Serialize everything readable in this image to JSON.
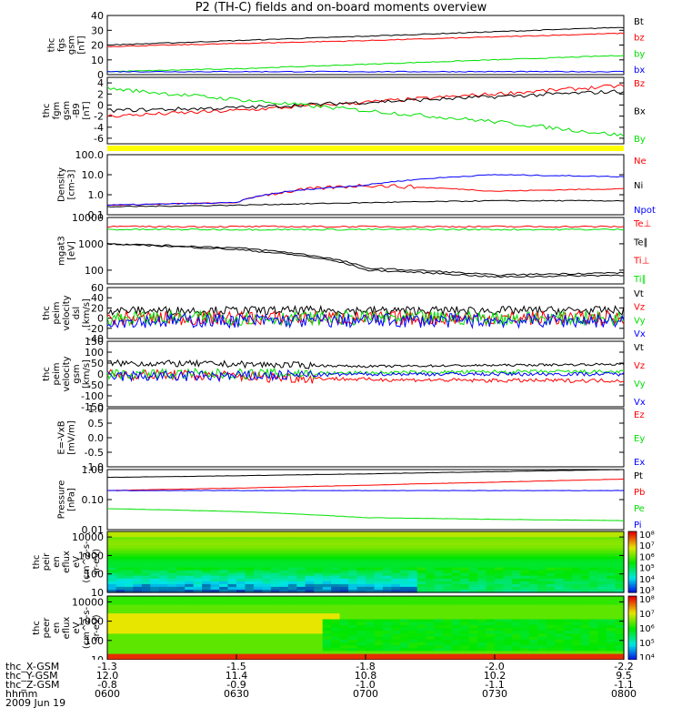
{
  "title": "P2 (TH-C) fields and on-board moments overview",
  "colors": {
    "black": "#000000",
    "red": "#ff0000",
    "green": "#00e000",
    "blue": "#0000ff",
    "yellow": "#ffff00"
  },
  "panels": [
    {
      "id": "fgs",
      "ylabel": [
        "thc",
        "fgs",
        "gsm",
        "[nT]"
      ],
      "ticks": [
        "0",
        "10",
        "20",
        "30",
        "40"
      ],
      "legend": [
        {
          "t": "Bt",
          "c": "black"
        },
        {
          "t": "bz",
          "c": "red"
        },
        {
          "t": "by",
          "c": "green"
        },
        {
          "t": "bx",
          "c": "blue"
        }
      ]
    },
    {
      "id": "fgm",
      "ylabel": [
        "thc",
        "fgm",
        "gsm",
        "-B9",
        "[nT]"
      ],
      "ticks": [
        "-6",
        "-4",
        "-2",
        "0",
        "2",
        "4"
      ],
      "legend": [
        {
          "t": "Bz",
          "c": "red"
        },
        {
          "t": "Bx",
          "c": "black"
        },
        {
          "t": "By",
          "c": "green"
        }
      ]
    },
    {
      "id": "density",
      "ylabel": [
        "Density",
        "[cm-3]"
      ],
      "ticks": [
        "0.1",
        "1.0",
        "10.0",
        "100.0"
      ],
      "legend": [
        {
          "t": "Ne",
          "c": "red"
        },
        {
          "t": "Ni",
          "c": "black"
        },
        {
          "t": "Npot",
          "c": "blue"
        }
      ]
    },
    {
      "id": "temp",
      "ylabel": [
        "mgat3",
        "[eV]"
      ],
      "ticks": [
        "100",
        "1000",
        "10000"
      ],
      "legend": [
        {
          "t": "Te⊥",
          "c": "red"
        },
        {
          "t": "Te∥",
          "c": "black"
        },
        {
          "t": "Ti⊥",
          "c": "red"
        },
        {
          "t": "Ti∥",
          "c": "green"
        }
      ]
    },
    {
      "id": "peim",
      "ylabel": [
        "thc",
        "peim",
        "velocity",
        "dsl",
        "[km/s]"
      ],
      "ticks": [
        "-40",
        "-20",
        "0",
        "20",
        "40",
        "60"
      ],
      "legend": [
        {
          "t": "Vt",
          "c": "black"
        },
        {
          "t": "Vz",
          "c": "red"
        },
        {
          "t": "Vy",
          "c": "green"
        },
        {
          "t": "Vx",
          "c": "blue"
        }
      ]
    },
    {
      "id": "peem",
      "ylabel": [
        "thc",
        "peim",
        "velocity",
        "gsm",
        "[km/s]"
      ],
      "ticks": [
        "-150",
        "-100",
        "-50",
        "0",
        "50",
        "100",
        "150"
      ],
      "legend": [
        {
          "t": "Vt",
          "c": "black"
        },
        {
          "t": "Vz",
          "c": "red"
        },
        {
          "t": "Vy",
          "c": "green"
        },
        {
          "t": "Vx",
          "c": "blue"
        }
      ]
    },
    {
      "id": "efield",
      "ylabel": [
        "E=-VxB",
        "[mV/m]"
      ],
      "ticks": [
        "-1.0",
        "-0.5",
        "0.0",
        "0.5",
        "1.0"
      ],
      "legend": [
        {
          "t": "Ez",
          "c": "red"
        },
        {
          "t": "Ey",
          "c": "green"
        },
        {
          "t": "Ex",
          "c": "blue"
        }
      ]
    },
    {
      "id": "pressure",
      "ylabel": [
        "Pressure",
        "[nPa]"
      ],
      "ticks": [
        "0.01",
        "0.10",
        "1.00"
      ],
      "legend": [
        {
          "t": "Pt",
          "c": "black"
        },
        {
          "t": "Pb",
          "c": "red"
        },
        {
          "t": "Pe",
          "c": "green"
        },
        {
          "t": "Pi",
          "c": "blue"
        }
      ]
    },
    {
      "id": "peir",
      "ylabel": [
        "thc",
        "peir",
        "en",
        "eflux",
        "eV",
        "(cm^2-s-",
        "sr-eV)"
      ],
      "ticks": [
        "10",
        "100",
        "1000",
        "10000"
      ],
      "colorbar": [
        "10³",
        "10⁴",
        "10⁵",
        "10⁶",
        "10⁷",
        "10⁸"
      ]
    },
    {
      "id": "peer",
      "ylabel": [
        "thc",
        "peer",
        "en",
        "eflux",
        "eV",
        "(cm^2-s-",
        "sr-eV)"
      ],
      "ticks": [
        "10",
        "100",
        "1000",
        "10000"
      ],
      "colorbar": [
        "10⁴",
        "10⁵",
        "10⁶",
        "10⁷",
        "10⁸"
      ]
    }
  ],
  "orbit": {
    "labels": [
      "thc_X-GSM",
      "thc_Y-GSM",
      "thc_Z-GSM",
      "hhmm",
      "2009 Jun 19"
    ],
    "columns": [
      {
        "x": "-1.3",
        "y": "12.0",
        "z": "-0.8",
        "t": "0600"
      },
      {
        "x": "-1.5",
        "y": "11.4",
        "z": "-0.9",
        "t": "0630"
      },
      {
        "x": "-1.8",
        "y": "10.8",
        "z": "-1.0",
        "t": "0700"
      },
      {
        "x": "-2.0",
        "y": "10.2",
        "z": "-1.1",
        "t": "0730"
      },
      {
        "x": "-2.2",
        "y": "9.5",
        "z": "-1.1",
        "t": "0800"
      }
    ]
  },
  "chart_data": [
    {
      "type": "line",
      "panel": "fgs",
      "ylim": [
        0,
        40
      ],
      "x": [
        "0600",
        "0630",
        "0700",
        "0730",
        "0800"
      ],
      "series": [
        {
          "name": "Bt",
          "values": [
            20,
            23,
            26,
            29,
            32
          ]
        },
        {
          "name": "bz",
          "values": [
            19,
            21,
            23,
            25.5,
            28
          ]
        },
        {
          "name": "by",
          "values": [
            2,
            4,
            7,
            10,
            13
          ]
        },
        {
          "name": "bx",
          "values": [
            2,
            2,
            2,
            2,
            2
          ]
        }
      ]
    },
    {
      "type": "line",
      "panel": "fgm",
      "ylim": [
        -7,
        5
      ],
      "x": [
        "0600",
        "0630",
        "0700",
        "0730",
        "0800"
      ],
      "series": [
        {
          "name": "Bz",
          "values": [
            -2,
            -1,
            0.5,
            2,
            3.5
          ]
        },
        {
          "name": "Bx",
          "values": [
            -1,
            -0.5,
            0.5,
            1.5,
            2.5
          ]
        },
        {
          "name": "By",
          "values": [
            3,
            1,
            -1,
            -3,
            -5.5
          ]
        }
      ]
    },
    {
      "type": "line",
      "panel": "density",
      "ylim": [
        0.1,
        100
      ],
      "log": true,
      "x": [
        "0600",
        "0630",
        "0700",
        "0730",
        "0800"
      ],
      "series": [
        {
          "name": "Ne",
          "values": [
            0.3,
            0.4,
            3,
            1.5,
            2
          ]
        },
        {
          "name": "Ni",
          "values": [
            0.25,
            0.3,
            0.4,
            0.5,
            0.5
          ]
        },
        {
          "name": "Npot",
          "values": [
            0.3,
            0.4,
            3,
            10,
            8
          ]
        }
      ]
    },
    {
      "type": "line",
      "panel": "temp",
      "ylim": [
        30,
        10000
      ],
      "log": true,
      "x": [
        "0600",
        "0630",
        "0700",
        "0730",
        "0800"
      ],
      "series": [
        {
          "name": "Te⊥",
          "values": [
            1000,
            700,
            120,
            65,
            80
          ]
        },
        {
          "name": "Te∥",
          "values": [
            1000,
            600,
            100,
            55,
            65
          ]
        },
        {
          "name": "Ti⊥",
          "values": [
            4500,
            4500,
            4500,
            4500,
            4500
          ]
        },
        {
          "name": "Ti∥",
          "values": [
            3500,
            3500,
            3500,
            3500,
            3500
          ]
        }
      ]
    },
    {
      "type": "line",
      "panel": "peim",
      "ylim": [
        -40,
        60
      ],
      "x": [
        "0600",
        "0630",
        "0700",
        "0730",
        "0800"
      ],
      "series": [
        {
          "name": "Vt",
          "values": [
            15,
            15,
            15,
            15,
            15
          ]
        },
        {
          "name": "Vz",
          "values": [
            0,
            0,
            0,
            0,
            0
          ]
        },
        {
          "name": "Vy",
          "values": [
            0,
            0,
            0,
            0,
            0
          ]
        },
        {
          "name": "Vx",
          "values": [
            -5,
            -5,
            -5,
            -5,
            -5
          ]
        }
      ]
    },
    {
      "type": "line",
      "panel": "peem",
      "ylim": [
        -150,
        150
      ],
      "x": [
        "0600",
        "0630",
        "0700",
        "0730",
        "0800"
      ],
      "series": [
        {
          "name": "Vt",
          "values": [
            50,
            45,
            35,
            40,
            45
          ]
        },
        {
          "name": "Vz",
          "values": [
            0,
            -10,
            -25,
            -30,
            -30
          ]
        },
        {
          "name": "Vy",
          "values": [
            0,
            0,
            5,
            10,
            10
          ]
        },
        {
          "name": "Vx",
          "values": [
            -10,
            -10,
            0,
            0,
            0
          ]
        }
      ]
    },
    {
      "type": "line",
      "panel": "pressure",
      "ylim": [
        0.01,
        1
      ],
      "log": true,
      "x": [
        "0600",
        "0630",
        "0700",
        "0730",
        "0800"
      ],
      "series": [
        {
          "name": "Pt",
          "values": [
            0.55,
            0.62,
            0.72,
            0.85,
            1.0
          ]
        },
        {
          "name": "Pb",
          "values": [
            0.2,
            0.24,
            0.3,
            0.38,
            0.48
          ]
        },
        {
          "name": "Pe",
          "values": [
            0.2,
            0.2,
            0.2,
            0.2,
            0.2
          ]
        },
        {
          "name": "Pi",
          "values": [
            0.05,
            0.04,
            0.025,
            0.022,
            0.02
          ]
        }
      ]
    },
    {
      "type": "heatmap",
      "panel": "peir",
      "ylabel": "eV",
      "ylim": [
        10,
        20000
      ]
    },
    {
      "type": "heatmap",
      "panel": "peer",
      "ylabel": "eV",
      "ylim": [
        10,
        20000
      ]
    }
  ]
}
